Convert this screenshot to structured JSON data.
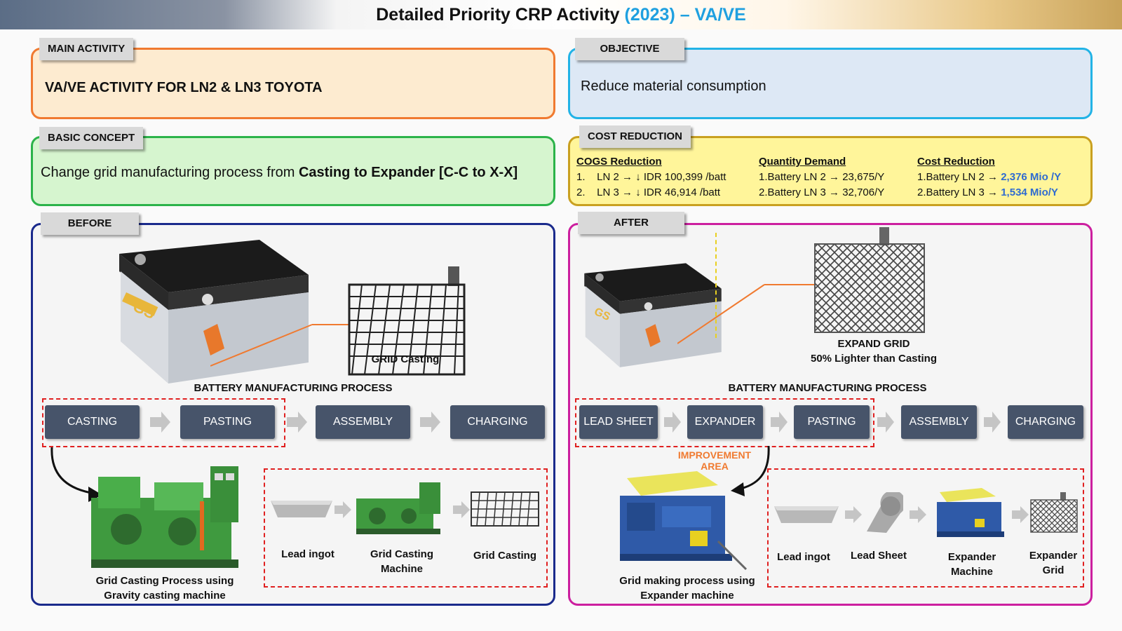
{
  "title": {
    "main": "Detailed Priority CRP Activity ",
    "year": "(2023) – VA/VE"
  },
  "main_activity": {
    "tab": "MAIN ACTIVITY",
    "text": "VA/VE ACTIVITY FOR LN2 & LN3 TOYOTA"
  },
  "objective": {
    "tab": "OBJECTIVE",
    "text": "Reduce material consumption"
  },
  "basic_concept": {
    "tab": "BASIC CONCEPT",
    "text_pre": "Change grid manufacturing process from ",
    "text_bold": "Casting to Expander [C-C to X-X]"
  },
  "cost_reduction": {
    "tab": "COST REDUCTION",
    "cogs": {
      "header": "COGS Reduction",
      "items": [
        "1.    LN 2 → ↓ IDR 100,399 /batt",
        "2.    LN 3 → ↓ IDR 46,914 /batt"
      ]
    },
    "quantity": {
      "header": "Quantity Demand",
      "items": [
        "1.Battery LN 2 → 23,675/Y",
        "2.Battery LN 3 → 32,706/Y"
      ]
    },
    "cost": {
      "header": "Cost Reduction",
      "items": [
        {
          "pre": "1.Battery LN 2 → ",
          "val": "2,376 Mio /Y"
        },
        {
          "pre": "2.Battery LN 3 → ",
          "val": "1,534 Mio/Y"
        }
      ]
    }
  },
  "before": {
    "tab": "BEFORE",
    "grid_label": "GRID Casting",
    "process_title": "BATTERY MANUFACTURING PROCESS",
    "steps": [
      "CASTING",
      "PASTING",
      "ASSEMBLY",
      "CHARGING"
    ],
    "machine_caption": "Grid Casting Process using\nGravity casting machine",
    "flow": [
      "Lead ingot",
      "Grid Casting\nMachine",
      "Grid Casting"
    ]
  },
  "after": {
    "tab": "AFTER",
    "grid_label": "EXPAND GRID\n50% Lighter than Casting",
    "process_title": "BATTERY MANUFACTURING PROCESS",
    "steps": [
      "LEAD SHEET",
      "EXPANDER",
      "PASTING",
      "ASSEMBLY",
      "CHARGING"
    ],
    "improvement": "IMPROVEMENT AREA",
    "machine_caption": "Grid making process using\nExpander machine",
    "flow": [
      "Lead ingot",
      "Lead Sheet",
      "Expander\nMachine",
      "Expander\nGrid"
    ]
  },
  "colors": {
    "orange": "#f07a30",
    "cyan": "#22b3e6",
    "green": "#2cb34a",
    "gold": "#c9a020",
    "navy": "#1a2a8c",
    "magenta": "#cc1f9f",
    "step": "#47546a",
    "blue_text": "#2f6bd0",
    "improve": "#f07a30"
  }
}
